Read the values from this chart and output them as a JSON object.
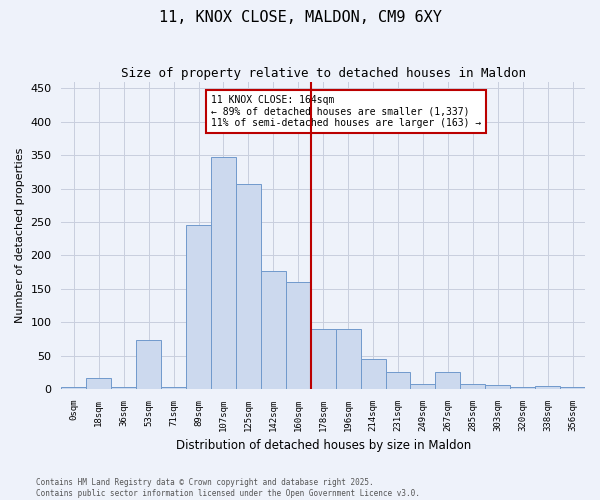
{
  "title": "11, KNOX CLOSE, MALDON, CM9 6XY",
  "subtitle": "Size of property relative to detached houses in Maldon",
  "xlabel": "Distribution of detached houses by size in Maldon",
  "ylabel": "Number of detached properties",
  "bar_color": "#ccd9ee",
  "bar_edge_color": "#7099cc",
  "background_color": "#eef2fa",
  "grid_color": "#c8cede",
  "bins": [
    "0sqm",
    "18sqm",
    "36sqm",
    "53sqm",
    "71sqm",
    "89sqm",
    "107sqm",
    "125sqm",
    "142sqm",
    "160sqm",
    "178sqm",
    "196sqm",
    "214sqm",
    "231sqm",
    "249sqm",
    "267sqm",
    "285sqm",
    "303sqm",
    "320sqm",
    "338sqm",
    "356sqm"
  ],
  "values": [
    3,
    17,
    3,
    73,
    3,
    245,
    347,
    307,
    177,
    160,
    90,
    90,
    45,
    25,
    8,
    25,
    8,
    6,
    3,
    5,
    3
  ],
  "property_size": 164,
  "pct_smaller": 89,
  "count_smaller": 1337,
  "pct_larger_semi": 11,
  "count_larger_semi": 163,
  "vline_color": "#bb0000",
  "annotation_box_color": "#bb0000",
  "ylim": [
    0,
    460
  ],
  "yticks": [
    0,
    50,
    100,
    150,
    200,
    250,
    300,
    350,
    400,
    450
  ],
  "footer": "Contains HM Land Registry data © Crown copyright and database right 2025.\nContains public sector information licensed under the Open Government Licence v3.0."
}
